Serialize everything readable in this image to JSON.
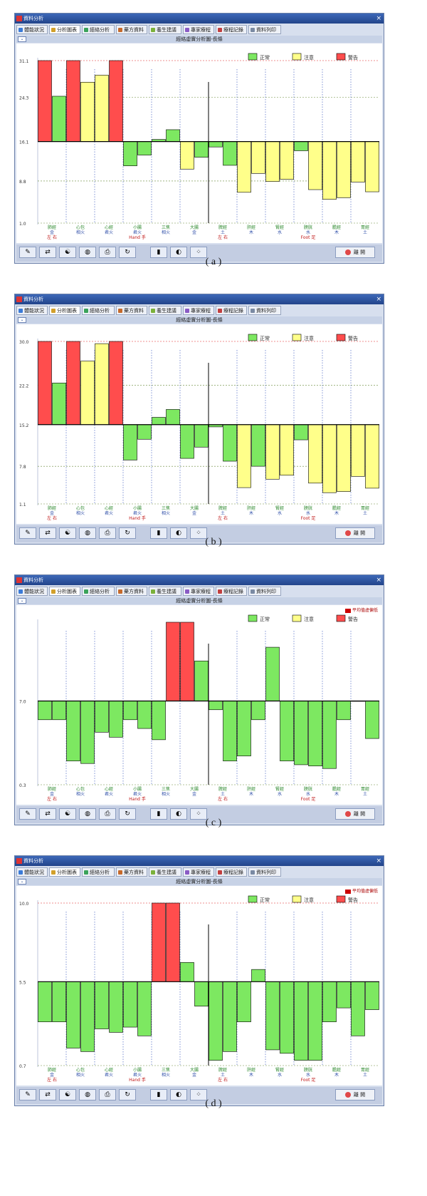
{
  "colors": {
    "normal": "#7de861",
    "caution": "#ffff8a",
    "warning": "#ff4d4d",
    "titlebar": "#2f5aa6"
  },
  "legend": {
    "normal": "正常",
    "caution": "注意",
    "warning": "警告"
  },
  "tabs": [
    "體能狀況",
    "分析圖表",
    "經絡分析",
    "藥方資料",
    "養生建議",
    "專家療程",
    "療程記錄",
    "資料列印"
  ],
  "exit_label": "離 開",
  "toolbar_icons": [
    "edit-icon",
    "compare-icon",
    "yinyang-icon",
    "globe-icon",
    "print-icon",
    "refresh-icon",
    "bar-chart-icon",
    "palette-icon",
    "scatter-icon"
  ],
  "panels": [
    {
      "caption": "( a )",
      "window_title": "資料分析",
      "chart_title": "經絡虛實分析圖-長條",
      "avg_label": "",
      "chart_data": {
        "type": "bar",
        "y_ticks": [
          "31.1",
          "24.3",
          "16.1",
          "8.8",
          "1.0"
        ],
        "baseline": 16.1,
        "ylim": [
          1.0,
          31.1
        ],
        "values": [
          31.1,
          24.5,
          31.1,
          27.1,
          28.4,
          31.1,
          11.6,
          13.6,
          16.5,
          18.3,
          11.0,
          13.2,
          15.1,
          11.7,
          6.7,
          10.2,
          8.7,
          9.1,
          14.4,
          7.2,
          5.4,
          5.7,
          8.6,
          6.8
        ],
        "status": [
          "warning",
          "normal",
          "warning",
          "caution",
          "caution",
          "warning",
          "normal",
          "normal",
          "normal",
          "normal",
          "caution",
          "normal",
          "normal",
          "normal",
          "caution",
          "caution",
          "caution",
          "caution",
          "normal",
          "caution",
          "caution",
          "caution",
          "caution",
          "caution"
        ],
        "group_labels": [
          {
            "name": "肺經",
            "sub": "金"
          },
          {
            "name": "心包",
            "sub": "相火"
          },
          {
            "name": "心經",
            "sub": "君火"
          },
          {
            "name": "小腸",
            "sub": "君火"
          },
          {
            "name": "三焦",
            "sub": "相火"
          },
          {
            "name": "大腸",
            "sub": "金"
          },
          {
            "name": "脾經",
            "sub": "土"
          },
          {
            "name": "肝經",
            "sub": "木"
          },
          {
            "name": "腎經",
            "sub": "水"
          },
          {
            "name": "膀胱",
            "sub": "水"
          },
          {
            "name": "膽經",
            "sub": "木"
          },
          {
            "name": "胃經",
            "sub": "土"
          }
        ],
        "side_labels": [
          "左  右",
          "Hand 手",
          "左  右",
          "Foot 足"
        ]
      }
    },
    {
      "caption": "( b )",
      "window_title": "資料分析",
      "chart_title": "經絡虛實分析圖-長條",
      "avg_label": "",
      "chart_data": {
        "type": "bar",
        "y_ticks": [
          "30.0",
          "22.2",
          "15.2",
          "7.8",
          "1.1"
        ],
        "baseline": 15.2,
        "ylim": [
          1.1,
          30.0
        ],
        "values": [
          30.0,
          22.6,
          30.0,
          26.5,
          29.6,
          30.0,
          8.9,
          12.6,
          16.5,
          17.9,
          9.2,
          11.2,
          14.8,
          8.7,
          4.0,
          7.8,
          5.5,
          6.2,
          12.5,
          4.8,
          3.1,
          3.3,
          6.0,
          3.9
        ],
        "status": [
          "warning",
          "normal",
          "warning",
          "caution",
          "caution",
          "warning",
          "normal",
          "normal",
          "normal",
          "normal",
          "normal",
          "normal",
          "normal",
          "normal",
          "caution",
          "normal",
          "caution",
          "caution",
          "normal",
          "caution",
          "caution",
          "caution",
          "caution",
          "caution"
        ],
        "group_labels": [
          {
            "name": "肺經",
            "sub": "金"
          },
          {
            "name": "心包",
            "sub": "相火"
          },
          {
            "name": "心經",
            "sub": "君火"
          },
          {
            "name": "小腸",
            "sub": "君火"
          },
          {
            "name": "三焦",
            "sub": "相火"
          },
          {
            "name": "大腸",
            "sub": "金"
          },
          {
            "name": "脾經",
            "sub": "土"
          },
          {
            "name": "肝經",
            "sub": "木"
          },
          {
            "name": "腎經",
            "sub": "水"
          },
          {
            "name": "膀胱",
            "sub": "水"
          },
          {
            "name": "膽經",
            "sub": "木"
          },
          {
            "name": "胃經",
            "sub": "土"
          }
        ],
        "side_labels": [
          "左  右",
          "Hand 手",
          "左  右",
          "Foot 足"
        ]
      }
    },
    {
      "caption": "( c )",
      "window_title": "資料分析",
      "chart_title": "經絡虛實分析圖-長條",
      "avg_label": "平均值虛偏低",
      "chart_data": {
        "type": "bar",
        "y_ticks": [
          "7.0",
          "0.3"
        ],
        "baseline": 7.0,
        "ylim": [
          0.3,
          13.3
        ],
        "values": [
          5.5,
          5.5,
          2.2,
          2.0,
          4.5,
          4.1,
          5.5,
          4.8,
          3.9,
          13.3,
          13.3,
          10.2,
          6.3,
          2.2,
          2.6,
          5.5,
          11.3,
          2.2,
          1.9,
          1.8,
          1.6,
          5.5,
          7.0,
          4.0
        ],
        "status": [
          "normal",
          "normal",
          "normal",
          "normal",
          "normal",
          "normal",
          "normal",
          "normal",
          "normal",
          "warning",
          "warning",
          "normal",
          "normal",
          "normal",
          "normal",
          "normal",
          "normal",
          "normal",
          "normal",
          "normal",
          "normal",
          "normal",
          "normal",
          "normal"
        ],
        "group_labels": [
          {
            "name": "肺經",
            "sub": "金"
          },
          {
            "name": "心包",
            "sub": "相火"
          },
          {
            "name": "心經",
            "sub": "君火"
          },
          {
            "name": "小腸",
            "sub": "君火"
          },
          {
            "name": "三焦",
            "sub": "相火"
          },
          {
            "name": "大腸",
            "sub": "金"
          },
          {
            "name": "脾經",
            "sub": "土"
          },
          {
            "name": "肝經",
            "sub": "木"
          },
          {
            "name": "腎經",
            "sub": "水"
          },
          {
            "name": "膀胱",
            "sub": "水"
          },
          {
            "name": "膽經",
            "sub": "木"
          },
          {
            "name": "胃經",
            "sub": "土"
          }
        ],
        "side_labels": [
          "左  右",
          "Hand 手",
          "左  右",
          "Foot 足"
        ]
      }
    },
    {
      "caption": "( d )",
      "window_title": "資料分析",
      "chart_title": "經絡虛實分析圖-長條",
      "avg_label": "平均值虛偏低",
      "chart_data": {
        "type": "bar",
        "y_ticks": [
          "10.0",
          "5.5",
          "0.7"
        ],
        "baseline": 5.5,
        "ylim": [
          0.7,
          10.0
        ],
        "values": [
          3.2,
          3.2,
          1.7,
          1.5,
          2.8,
          2.6,
          2.9,
          2.4,
          10.0,
          10.0,
          6.6,
          4.1,
          1.0,
          1.5,
          3.2,
          6.2,
          1.6,
          1.4,
          1.0,
          1.0,
          3.2,
          4.0,
          2.4,
          3.9
        ],
        "status": [
          "normal",
          "normal",
          "normal",
          "normal",
          "normal",
          "normal",
          "normal",
          "normal",
          "warning",
          "warning",
          "normal",
          "normal",
          "normal",
          "normal",
          "normal",
          "normal",
          "normal",
          "normal",
          "normal",
          "normal",
          "normal",
          "normal",
          "normal",
          "normal"
        ],
        "group_labels": [
          {
            "name": "肺經",
            "sub": "金"
          },
          {
            "name": "心包",
            "sub": "相火"
          },
          {
            "name": "心經",
            "sub": "君火"
          },
          {
            "name": "小腸",
            "sub": "君火"
          },
          {
            "name": "三焦",
            "sub": "相火"
          },
          {
            "name": "大腸",
            "sub": "金"
          },
          {
            "name": "脾經",
            "sub": "土"
          },
          {
            "name": "肝經",
            "sub": "木"
          },
          {
            "name": "腎經",
            "sub": "水"
          },
          {
            "name": "膀胱",
            "sub": "水"
          },
          {
            "name": "膽經",
            "sub": "木"
          },
          {
            "name": "胃經",
            "sub": "土"
          }
        ],
        "side_labels": [
          "左  右",
          "Hand 手",
          "左  右",
          "Foot 足"
        ]
      }
    }
  ]
}
